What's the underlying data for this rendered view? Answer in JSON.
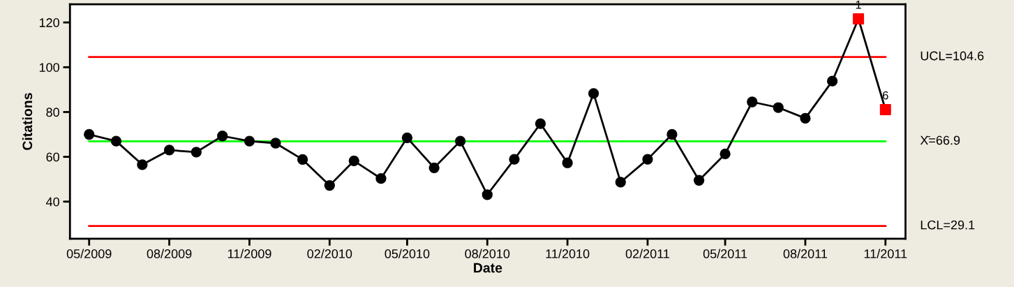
{
  "chart_data": {
    "type": "line",
    "xlabel": "Date",
    "ylabel": "Citations",
    "x": [
      "2009-05",
      "2009-06",
      "2009-07",
      "2009-08",
      "2009-09",
      "2009-10",
      "2009-11",
      "2009-12",
      "2010-01",
      "2010-02",
      "2010-03",
      "2010-04",
      "2010-05",
      "2010-06",
      "2010-07",
      "2010-08",
      "2010-09",
      "2010-10",
      "2010-11",
      "2010-12",
      "2011-01",
      "2011-02",
      "2011-03",
      "2011-04",
      "2011-05",
      "2011-06",
      "2011-07",
      "2011-08",
      "2011-09",
      "2011-10",
      "2011-11"
    ],
    "series": [
      {
        "color": "#000000",
        "marker": "circle",
        "values": [
          70.0,
          67.0,
          56.5,
          63.0,
          62.1,
          69.3,
          67.0,
          66.1,
          58.8,
          47.2,
          58.2,
          50.3,
          68.5,
          55.1,
          67.0,
          43.1,
          58.9,
          74.8,
          57.3,
          88.3,
          48.7,
          58.9,
          70.0,
          49.5,
          61.3,
          84.5,
          82.0,
          77.2,
          93.8,
          121.6,
          81.1
        ]
      },
      {
        "type": "scatter",
        "color": "#ff0000",
        "marker": "square",
        "x": [
          "2011-10",
          "2011-11"
        ],
        "values": [
          121.6,
          81.1
        ]
      }
    ],
    "xlim": [
      "2009-04-09",
      "2011-11-24"
    ],
    "xticks": [
      {
        "value": "2009-05",
        "label": "05/2009"
      },
      {
        "value": "2009-08",
        "label": "08/2009"
      },
      {
        "value": "2009-11",
        "label": "11/2009"
      },
      {
        "value": "2010-02",
        "label": "02/2010"
      },
      {
        "value": "2010-05",
        "label": "05/2010"
      },
      {
        "value": "2010-08",
        "label": "08/2010"
      },
      {
        "value": "2010-11",
        "label": "11/2010"
      },
      {
        "value": "2011-02",
        "label": "02/2011"
      },
      {
        "value": "2011-05",
        "label": "05/2011"
      },
      {
        "value": "2011-08",
        "label": "08/2011"
      },
      {
        "value": "2011-11",
        "label": "11/2011"
      }
    ],
    "ylim": [
      23.4,
      128.1
    ],
    "yticks": [
      40,
      60,
      80,
      100,
      120
    ],
    "ref_lines": [
      {
        "axis": "y",
        "value": 104.6,
        "label": "UCL=104.6",
        "color": "#ff0000"
      },
      {
        "axis": "y",
        "value": 66.9,
        "label": "X̄=66.9",
        "color": "#00ff00"
      },
      {
        "axis": "y",
        "value": 29.1,
        "label": "LCL=29.1",
        "color": "#ff0000"
      }
    ],
    "annotations": [
      {
        "text": "1",
        "x": "2011-10",
        "y": 121.6
      },
      {
        "text": "6",
        "x": "2011-11",
        "y": 81.1
      }
    ],
    "grid": false,
    "legend": false
  }
}
